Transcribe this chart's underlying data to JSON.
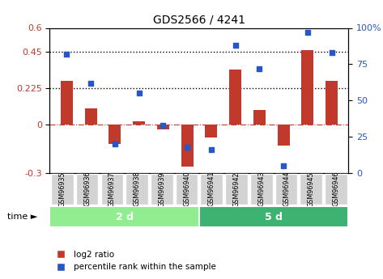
{
  "title": "GDS2566 / 4241",
  "samples": [
    "GSM96935",
    "GSM96936",
    "GSM96937",
    "GSM96938",
    "GSM96939",
    "GSM96940",
    "GSM96941",
    "GSM96942",
    "GSM96943",
    "GSM96944",
    "GSM96945",
    "GSM96946"
  ],
  "log2_ratio": [
    0.27,
    0.1,
    -0.12,
    0.02,
    -0.03,
    -0.26,
    -0.08,
    0.34,
    0.09,
    -0.13,
    0.46,
    0.27
  ],
  "percentile_rank": [
    82,
    62,
    20,
    55,
    33,
    18,
    16,
    88,
    72,
    5,
    97,
    83
  ],
  "bar_color": "#c0392b",
  "dot_color": "#2756c5",
  "ylim_left": [
    -0.3,
    0.6
  ],
  "ylim_right": [
    0,
    100
  ],
  "left_ticks": [
    -0.3,
    0,
    0.225,
    0.45,
    0.6
  ],
  "left_tick_labels": [
    "-0.3",
    "0",
    "0.225",
    "0.45",
    "0.6"
  ],
  "right_ticks": [
    0,
    25,
    50,
    75,
    100
  ],
  "right_tick_labels": [
    "0",
    "25",
    "50",
    "75",
    "100%"
  ],
  "hlines": [
    0.225,
    0.45
  ],
  "zero_line_color": "#c0392b",
  "groups": [
    {
      "label": "2 d",
      "start": 0,
      "end": 6,
      "color": "#90ee90"
    },
    {
      "label": "5 d",
      "start": 6,
      "end": 12,
      "color": "#3cb371"
    }
  ],
  "xlabel_time": "time",
  "legend_bar_label": "log2 ratio",
  "legend_dot_label": "percentile rank within the sample",
  "tick_label_color_left": "#c0392b",
  "tick_label_color_right": "#2756c5",
  "bar_width": 0.5,
  "sample_box_color": "#d3d3d3"
}
